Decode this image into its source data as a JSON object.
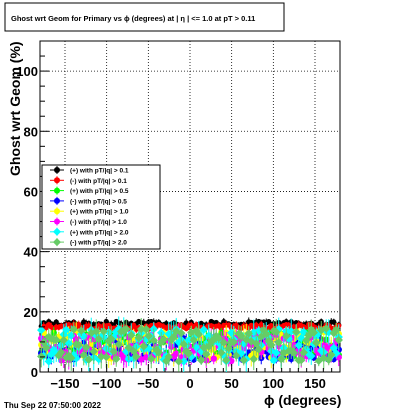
{
  "chart_data": {
    "type": "scatter",
    "title": "Ghost wrt Geom for Primary vs ϕ (degrees) at |  η | <= 1.0 at pT > 0.11",
    "xlabel": "ϕ (degrees)",
    "ylabel": "Ghost wrt Geom (%)",
    "timestamp": "Thu Sep 22 07:50:00 2022",
    "xlim": [
      -180,
      180
    ],
    "ylim": [
      0,
      110
    ],
    "x_ticks": [
      -150,
      -100,
      -50,
      0,
      50,
      100,
      150
    ],
    "x_tick_labels": [
      "−150",
      "−100",
      "−50",
      "0",
      "50",
      "100",
      "150"
    ],
    "y_ticks": [
      0,
      20,
      40,
      60,
      80,
      100
    ],
    "y_tick_labels": [
      "0",
      "20",
      "40",
      "60",
      "80",
      "100"
    ],
    "grid": true,
    "legend_position": "middle-left",
    "n_bins": 120,
    "series": [
      {
        "name": "(+) with pT/|q| > 0.1",
        "color": "#000000",
        "marker": "circle",
        "level": 16,
        "spread": 0.8,
        "error": 1.0
      },
      {
        "name": "(-) with pT/|q| > 0.1",
        "color": "#ff0000",
        "marker": "circle",
        "level": 15,
        "spread": 0.8,
        "error": 1.0
      },
      {
        "name": "(+) with pT/|q| > 0.5",
        "color": "#00ff00",
        "marker": "circle",
        "level": 9,
        "spread": 4.0,
        "error": 2.0
      },
      {
        "name": "(-) with pT/|q| > 0.5",
        "color": "#0000ff",
        "marker": "circle",
        "level": 8,
        "spread": 4.0,
        "error": 2.0
      },
      {
        "name": "(+) with pT/|q| > 1.0",
        "color": "#ffff00",
        "marker": "circle",
        "level": 9,
        "spread": 4.5,
        "error": 2.5
      },
      {
        "name": "(-) with pT/|q| > 1.0",
        "color": "#ff00ff",
        "marker": "circle",
        "level": 8,
        "spread": 4.5,
        "error": 2.5
      },
      {
        "name": "(+) with pT/|q| > 2.0",
        "color": "#00ffff",
        "marker": "diamond",
        "level": 9,
        "spread": 5.5,
        "error": 3.0
      },
      {
        "name": "(-) with pT/|q| > 2.0",
        "color": "#66cc66",
        "marker": "diamond",
        "level": 9,
        "spread": 5.5,
        "error": 3.0
      }
    ]
  }
}
